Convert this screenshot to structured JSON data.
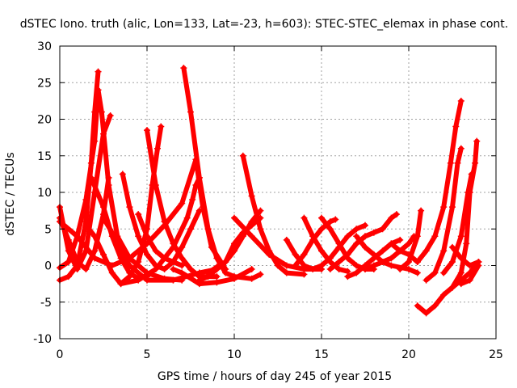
{
  "chart_data": {
    "type": "scatter",
    "title": "dSTEC Iono. truth (alic, Lon=133, Lat=-23, h=603): STEC-STEC_elemax in phase cont.",
    "xlabel": "GPS time / hours of day 245 of year 2015",
    "ylabel": "dSTEC  / TECUs",
    "xlim": [
      0,
      25
    ],
    "ylim": [
      -10,
      30
    ],
    "xticks": [
      0,
      5,
      10,
      15,
      20,
      25
    ],
    "yticks": [
      -10,
      -5,
      0,
      5,
      10,
      15,
      20,
      25,
      30
    ],
    "grid": true,
    "marker": "+",
    "color": "#ff0000",
    "series": [
      {
        "points": [
          [
            0.0,
            -2.0
          ],
          [
            0.5,
            -1.5
          ],
          [
            1.0,
            0.0
          ],
          [
            1.5,
            6.0
          ],
          [
            1.8,
            14.0
          ],
          [
            2.0,
            21.0
          ],
          [
            2.2,
            26.5
          ]
        ]
      },
      {
        "points": [
          [
            0.0,
            8.0
          ],
          [
            0.5,
            2.0
          ],
          [
            1.0,
            -0.5
          ],
          [
            1.5,
            2.0
          ],
          [
            2.0,
            10.0
          ],
          [
            2.5,
            18.0
          ],
          [
            2.9,
            20.5
          ]
        ]
      },
      {
        "points": [
          [
            0.0,
            -0.3
          ],
          [
            0.5,
            0.5
          ],
          [
            1.0,
            4.0
          ],
          [
            1.5,
            9.0
          ],
          [
            2.0,
            17.0
          ],
          [
            2.2,
            24.0
          ],
          [
            2.4,
            21.0
          ],
          [
            2.8,
            11.0
          ],
          [
            3.3,
            4.0
          ],
          [
            4.0,
            1.0
          ],
          [
            5.0,
            -1.0
          ],
          [
            6.0,
            -1.8
          ],
          [
            7.0,
            -2.0
          ]
        ]
      },
      {
        "points": [
          [
            0.0,
            6.5
          ],
          [
            0.5,
            3.5
          ],
          [
            1.0,
            0.5
          ],
          [
            1.5,
            -0.5
          ],
          [
            2.0,
            2.0
          ],
          [
            2.5,
            7.0
          ],
          [
            2.8,
            12.0
          ]
        ]
      },
      {
        "points": [
          [
            0.0,
            6.0
          ],
          [
            1.0,
            4.0
          ],
          [
            2.0,
            1.0
          ],
          [
            3.0,
            0.0
          ],
          [
            4.0,
            1.0
          ],
          [
            5.0,
            3.0
          ],
          [
            6.0,
            5.5
          ],
          [
            7.0,
            8.5
          ],
          [
            7.8,
            14.5
          ],
          [
            8.2,
            8.0
          ],
          [
            8.7,
            2.5
          ],
          [
            9.5,
            -0.5
          ]
        ]
      },
      {
        "points": [
          [
            1.5,
            5.5
          ],
          [
            2.0,
            4.0
          ],
          [
            2.5,
            1.5
          ],
          [
            3.0,
            -1.0
          ],
          [
            3.5,
            -2.5
          ],
          [
            4.5,
            -2.0
          ],
          [
            5.5,
            -0.5
          ],
          [
            6.5,
            2.5
          ],
          [
            7.3,
            6.5
          ],
          [
            7.6,
            9.0
          ],
          [
            7.8,
            11.0
          ],
          [
            8.0,
            12.0
          ]
        ]
      },
      {
        "points": [
          [
            1.8,
            12.0
          ],
          [
            2.5,
            8.0
          ],
          [
            3.0,
            4.0
          ],
          [
            3.5,
            1.0
          ],
          [
            4.0,
            -1.0
          ],
          [
            4.5,
            -1.8
          ],
          [
            5.0,
            -1.5
          ]
        ]
      },
      {
        "points": [
          [
            2.5,
            6.5
          ],
          [
            3.0,
            4.5
          ],
          [
            3.5,
            2.0
          ],
          [
            4.0,
            0.0
          ],
          [
            5.0,
            -2.0
          ],
          [
            6.5,
            -2.0
          ],
          [
            8.0,
            -1.0
          ],
          [
            9.0,
            -0.5
          ]
        ]
      },
      {
        "points": [
          [
            3.5,
            -2.5
          ],
          [
            4.0,
            -1.5
          ],
          [
            4.5,
            0.5
          ],
          [
            5.0,
            5.0
          ],
          [
            5.3,
            11.0
          ],
          [
            5.6,
            16.0
          ],
          [
            5.8,
            19.0
          ]
        ]
      },
      {
        "points": [
          [
            3.6,
            12.5
          ],
          [
            4.0,
            8.0
          ],
          [
            4.5,
            4.0
          ],
          [
            5.0,
            1.5
          ],
          [
            5.5,
            0.0
          ],
          [
            6.0,
            -0.5
          ],
          [
            6.5,
            0.5
          ],
          [
            7.0,
            2.5
          ],
          [
            7.5,
            5.0
          ],
          [
            8.0,
            7.5
          ]
        ]
      },
      {
        "points": [
          [
            4.5,
            7.0
          ],
          [
            5.0,
            4.0
          ],
          [
            5.5,
            2.0
          ],
          [
            6.0,
            1.0
          ],
          [
            6.5,
            0.5
          ],
          [
            7.0,
            0.0
          ]
        ]
      },
      {
        "points": [
          [
            5.0,
            18.5
          ],
          [
            5.5,
            11.0
          ],
          [
            6.0,
            6.0
          ],
          [
            6.5,
            3.0
          ],
          [
            7.0,
            1.0
          ],
          [
            7.5,
            -0.5
          ],
          [
            8.0,
            -1.5
          ],
          [
            9.0,
            -1.5
          ]
        ]
      },
      {
        "points": [
          [
            6.5,
            -0.5
          ],
          [
            7.0,
            -1.0
          ],
          [
            8.0,
            -2.5
          ],
          [
            9.0,
            -2.3
          ],
          [
            10.0,
            -1.8
          ],
          [
            11.0,
            -0.5
          ]
        ]
      },
      {
        "points": [
          [
            7.1,
            27.0
          ],
          [
            7.5,
            21.0
          ],
          [
            8.0,
            12.0
          ],
          [
            8.5,
            5.0
          ],
          [
            9.0,
            1.0
          ],
          [
            9.5,
            -1.0
          ],
          [
            10.0,
            -1.5
          ],
          [
            11.0,
            -1.8
          ],
          [
            11.5,
            -1.2
          ]
        ]
      },
      {
        "points": [
          [
            8.0,
            -2.0
          ],
          [
            8.5,
            -1.5
          ],
          [
            9.0,
            -0.5
          ],
          [
            9.5,
            0.5
          ],
          [
            10.0,
            3.0
          ],
          [
            10.5,
            4.5
          ],
          [
            11.0,
            5.5
          ],
          [
            11.5,
            6.5
          ]
        ]
      },
      {
        "points": [
          [
            8.5,
            -1.0
          ],
          [
            9.0,
            -0.2
          ],
          [
            9.5,
            0.5
          ],
          [
            10.0,
            2.0
          ],
          [
            10.5,
            4.0
          ],
          [
            11.0,
            6.0
          ],
          [
            11.5,
            7.5
          ]
        ]
      },
      {
        "points": [
          [
            10.5,
            15.0
          ],
          [
            11.0,
            9.5
          ],
          [
            11.5,
            5.0
          ],
          [
            12.0,
            2.0
          ],
          [
            12.5,
            0.0
          ],
          [
            13.0,
            -1.0
          ],
          [
            14.0,
            -1.2
          ]
        ]
      },
      {
        "points": [
          [
            10.0,
            6.5
          ],
          [
            11.0,
            4.0
          ],
          [
            12.0,
            1.5
          ],
          [
            13.0,
            0.0
          ],
          [
            14.0,
            -0.5
          ],
          [
            15.0,
            -0.5
          ]
        ]
      },
      {
        "points": [
          [
            13.0,
            3.5
          ],
          [
            13.5,
            1.5
          ],
          [
            14.0,
            0.0
          ],
          [
            14.5,
            -0.5
          ],
          [
            15.0,
            0.0
          ],
          [
            15.5,
            1.0
          ],
          [
            16.0,
            2.5
          ],
          [
            16.5,
            4.0
          ],
          [
            17.0,
            5.0
          ],
          [
            17.5,
            5.5
          ]
        ]
      },
      {
        "points": [
          [
            13.5,
            0.0
          ],
          [
            14.0,
            1.5
          ],
          [
            14.5,
            3.5
          ],
          [
            15.0,
            5.0
          ],
          [
            15.5,
            6.0
          ],
          [
            15.8,
            6.3
          ]
        ]
      },
      {
        "points": [
          [
            14.0,
            6.5
          ],
          [
            14.5,
            4.0
          ],
          [
            15.0,
            2.0
          ],
          [
            15.5,
            0.5
          ],
          [
            16.0,
            -0.5
          ],
          [
            16.5,
            -0.8
          ]
        ]
      },
      {
        "points": [
          [
            15.0,
            6.5
          ],
          [
            15.5,
            5.0
          ],
          [
            16.0,
            3.0
          ],
          [
            16.5,
            1.0
          ],
          [
            17.0,
            0.0
          ],
          [
            17.5,
            -0.5
          ],
          [
            18.0,
            -0.5
          ]
        ]
      },
      {
        "points": [
          [
            15.5,
            -0.5
          ],
          [
            16.0,
            0.5
          ],
          [
            16.5,
            1.5
          ],
          [
            17.0,
            3.0
          ],
          [
            17.5,
            4.0
          ],
          [
            18.0,
            4.5
          ],
          [
            18.5,
            5.0
          ],
          [
            19.0,
            6.5
          ],
          [
            19.3,
            7.0
          ]
        ]
      },
      {
        "points": [
          [
            16.5,
            -1.5
          ],
          [
            17.0,
            -1.0
          ],
          [
            17.5,
            0.0
          ],
          [
            18.0,
            1.0
          ],
          [
            18.5,
            2.0
          ],
          [
            19.0,
            3.0
          ],
          [
            19.5,
            3.5
          ]
        ]
      },
      {
        "points": [
          [
            17.5,
            -0.5
          ],
          [
            18.0,
            0.0
          ],
          [
            18.5,
            0.5
          ],
          [
            19.0,
            1.0
          ],
          [
            19.5,
            2.0
          ],
          [
            20.0,
            3.0
          ],
          [
            20.3,
            4.0
          ]
        ]
      },
      {
        "points": [
          [
            17.0,
            4.0
          ],
          [
            17.5,
            2.5
          ],
          [
            18.0,
            1.5
          ],
          [
            18.5,
            0.5
          ],
          [
            19.0,
            0.0
          ],
          [
            20.0,
            -0.5
          ],
          [
            20.5,
            -1.0
          ]
        ]
      },
      {
        "points": [
          [
            19.0,
            3.0
          ],
          [
            19.5,
            2.0
          ],
          [
            20.0,
            1.5
          ],
          [
            20.5,
            0.5
          ]
        ]
      },
      {
        "points": [
          [
            19.5,
            -0.5
          ],
          [
            20.0,
            0.5
          ],
          [
            20.5,
            4.0
          ],
          [
            20.7,
            7.5
          ]
        ]
      },
      {
        "points": [
          [
            20.5,
            -5.5
          ],
          [
            21.0,
            -6.5
          ],
          [
            21.5,
            -5.5
          ],
          [
            22.0,
            -4.0
          ],
          [
            22.5,
            -3.0
          ],
          [
            23.0,
            -2.0
          ],
          [
            23.5,
            -1.0
          ],
          [
            24.0,
            0.5
          ]
        ]
      },
      {
        "points": [
          [
            20.5,
            0.5
          ],
          [
            21.0,
            2.0
          ],
          [
            21.5,
            4.0
          ],
          [
            22.0,
            8.0
          ],
          [
            22.4,
            14.0
          ],
          [
            22.7,
            19.0
          ],
          [
            23.0,
            22.5
          ]
        ]
      },
      {
        "points": [
          [
            21.0,
            -2.0
          ],
          [
            21.5,
            -1.0
          ],
          [
            22.0,
            2.0
          ],
          [
            22.5,
            8.0
          ],
          [
            22.8,
            14.0
          ],
          [
            23.0,
            16.0
          ]
        ]
      },
      {
        "points": [
          [
            22.5,
            -3.0
          ],
          [
            23.0,
            -1.0
          ],
          [
            23.3,
            3.0
          ],
          [
            23.5,
            10.0
          ],
          [
            23.8,
            14.0
          ],
          [
            23.9,
            17.0
          ]
        ]
      },
      {
        "points": [
          [
            22.0,
            -1.0
          ],
          [
            22.5,
            0.5
          ],
          [
            23.0,
            4.0
          ],
          [
            23.4,
            10.0
          ],
          [
            23.6,
            12.5
          ]
        ]
      },
      {
        "points": [
          [
            22.5,
            2.5
          ],
          [
            23.0,
            1.0
          ],
          [
            23.5,
            0.0
          ],
          [
            24.0,
            0.5
          ]
        ]
      },
      {
        "points": [
          [
            23.0,
            -2.5
          ],
          [
            23.5,
            -2.0
          ],
          [
            24.0,
            0.0
          ]
        ]
      }
    ]
  }
}
